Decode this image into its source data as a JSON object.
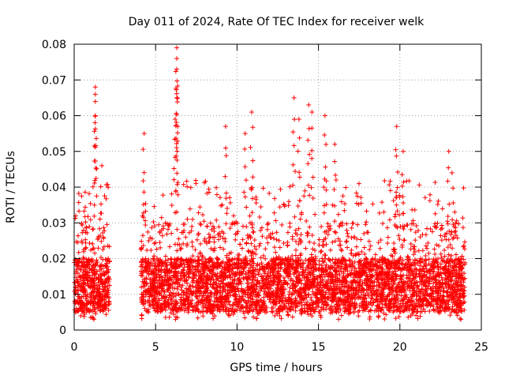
{
  "chart_data": {
    "type": "scatter",
    "title": "Day 011 of 2024, Rate Of TEC Index for receiver welk",
    "xlabel": "GPS time / hours",
    "ylabel": "ROTI / TECUs",
    "xlim": [
      0,
      25
    ],
    "ylim": [
      0,
      0.08
    ],
    "x_ticks": [
      0,
      5,
      10,
      15,
      20,
      25
    ],
    "x_tick_labels": [
      "0",
      "5",
      "10",
      "15",
      "20",
      "25"
    ],
    "y_ticks": [
      0,
      0.01,
      0.02,
      0.03,
      0.04,
      0.05,
      0.06,
      0.07,
      0.08
    ],
    "y_tick_labels": [
      "0",
      "0.01",
      "0.02",
      "0.03",
      "0.04",
      "0.05",
      "0.06",
      "0.07",
      "0.08"
    ],
    "grid": true,
    "marker": "+",
    "color": "#ff0000",
    "data_gap_hours": [
      2.2,
      4.1
    ],
    "series": [
      {
        "name": "ROTI",
        "approx_baseline_range": [
          0.005,
          0.02
        ],
        "notable_points": [
          {
            "x": 1.3,
            "y": 0.068
          },
          {
            "x": 1.3,
            "y": 0.066
          },
          {
            "x": 1.3,
            "y": 0.06
          },
          {
            "x": 1.7,
            "y": 0.046
          },
          {
            "x": 4.3,
            "y": 0.055
          },
          {
            "x": 6.3,
            "y": 0.079
          },
          {
            "x": 6.3,
            "y": 0.076
          },
          {
            "x": 6.3,
            "y": 0.073
          },
          {
            "x": 6.3,
            "y": 0.065
          },
          {
            "x": 6.2,
            "y": 0.059
          },
          {
            "x": 9.3,
            "y": 0.057
          },
          {
            "x": 10.9,
            "y": 0.061
          },
          {
            "x": 10.5,
            "y": 0.055
          },
          {
            "x": 13.5,
            "y": 0.065
          },
          {
            "x": 13.8,
            "y": 0.059
          },
          {
            "x": 14.4,
            "y": 0.063
          },
          {
            "x": 14.6,
            "y": 0.061
          },
          {
            "x": 15.4,
            "y": 0.06
          },
          {
            "x": 16.0,
            "y": 0.052
          },
          {
            "x": 19.8,
            "y": 0.057
          },
          {
            "x": 20.2,
            "y": 0.05
          },
          {
            "x": 23.0,
            "y": 0.05
          },
          {
            "x": 23.2,
            "y": 0.044
          }
        ]
      }
    ]
  }
}
